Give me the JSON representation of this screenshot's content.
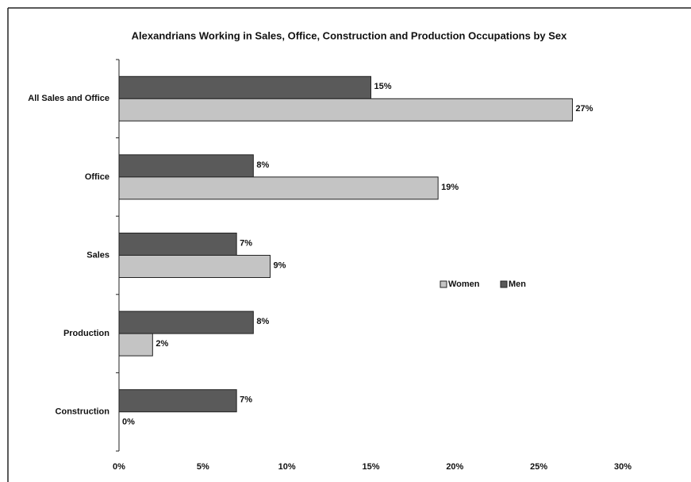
{
  "chart_data": {
    "type": "bar",
    "orientation": "horizontal",
    "title": "Alexandrians Working in Sales, Office, Construction and Production Occupations by Sex",
    "categories": [
      "All Sales and Office",
      "Office",
      "Sales",
      "Production",
      "Construction"
    ],
    "series": [
      {
        "name": "Men",
        "color": "#5a5a5a",
        "values": [
          15,
          8,
          7,
          8,
          7
        ],
        "value_labels": [
          "15%",
          "8%",
          "7%",
          "8%",
          "7%"
        ]
      },
      {
        "name": "Women",
        "color": "#c4c4c4",
        "values": [
          27,
          19,
          9,
          2,
          0
        ],
        "value_labels": [
          "27%",
          "19%",
          "9%",
          "2%",
          "0%"
        ]
      }
    ],
    "xlim": [
      0,
      30
    ],
    "xticks": [
      {
        "value": 0,
        "label": "0%"
      },
      {
        "value": 5,
        "label": "5%"
      },
      {
        "value": 10,
        "label": "10%"
      },
      {
        "value": 15,
        "label": "15%"
      },
      {
        "value": 20,
        "label": "20%"
      },
      {
        "value": 25,
        "label": "25%"
      },
      {
        "value": 30,
        "label": "30%"
      }
    ],
    "grid": false,
    "legend": "right"
  }
}
